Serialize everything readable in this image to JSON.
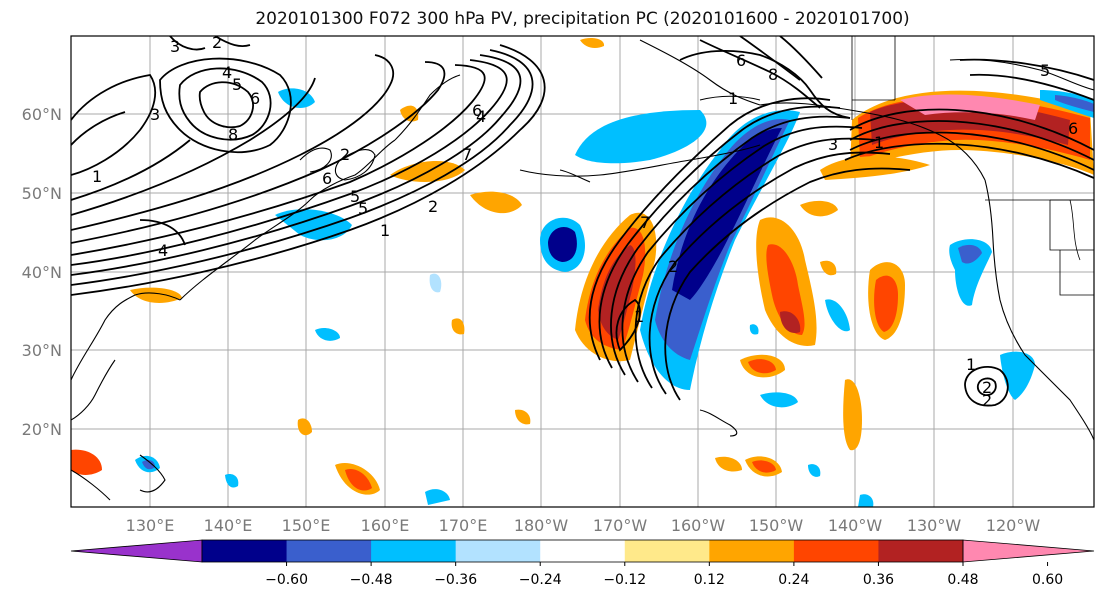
{
  "title": "2020101300 F072 300 hPa PV, precipitation PC (2020101600 - 2020101700)",
  "lat_labels": [
    "60°N",
    "50°N",
    "40°N",
    "30°N",
    "20°N"
  ],
  "lon_labels": [
    "130°E",
    "140°E",
    "150°E",
    "160°E",
    "170°E",
    "180°W",
    "170°W",
    "160°W",
    "150°W",
    "140°W",
    "130°W",
    "120°W"
  ],
  "colorbar": {
    "colors": [
      "#9932cc",
      "#00008b",
      "#3a5fcd",
      "#00bfff",
      "#b2e2ff",
      "#ffffff",
      "#ffe98a",
      "#ffa500",
      "#ff4500",
      "#b22222",
      "#ff88b0"
    ],
    "tick_labels": [
      "−0.60",
      "−0.48",
      "−0.36",
      "−0.24",
      "−0.12",
      "0.12",
      "0.24",
      "0.36",
      "0.48",
      "0.60"
    ]
  },
  "contour_labels": [
    "3",
    "2",
    "4",
    "5",
    "6",
    "8",
    "1",
    "7",
    "6",
    "3",
    "1",
    "2",
    "4",
    "5",
    "4",
    "2",
    "1",
    "8",
    "6",
    "5",
    "1",
    "6",
    "3",
    "1",
    "7",
    "2",
    "2",
    "1",
    "2",
    "5",
    "6"
  ],
  "colors": {
    "grid": "#a8a8a8",
    "axis_label": "#7a7a7a",
    "contour": "#000000"
  }
}
